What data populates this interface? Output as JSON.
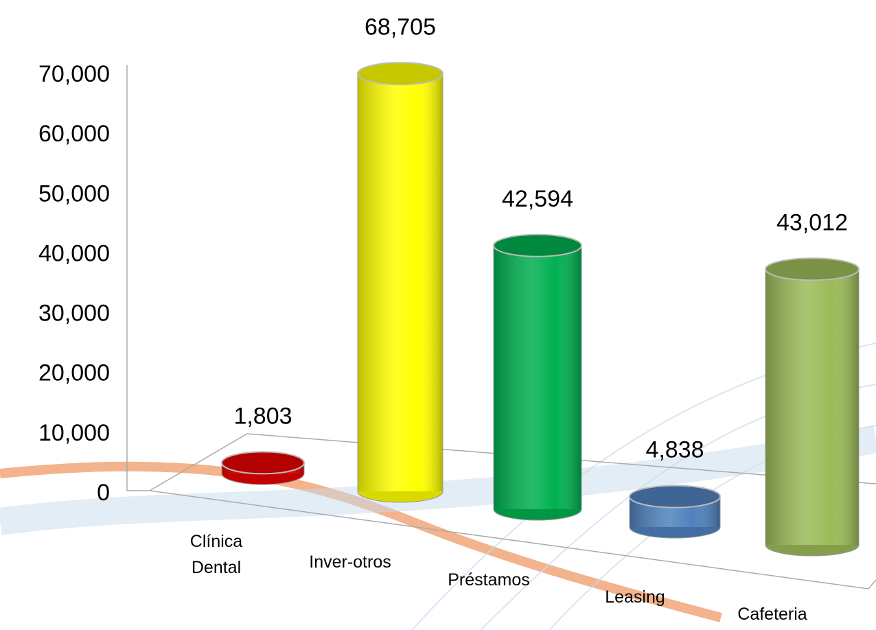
{
  "chart_data": {
    "type": "cylinder",
    "categories": [
      "Clínica Dental",
      "Inver-otros",
      "Préstamos",
      "Leasing",
      "Cafeteria"
    ],
    "values": [
      1803,
      68705,
      42594,
      4838,
      43012
    ],
    "value_labels": [
      "1,803",
      "68,705",
      "42,594",
      "4,838",
      "43,012"
    ],
    "colors": [
      "#e60000",
      "#ffff00",
      "#00b050",
      "#4f81bd",
      "#9bbb59"
    ],
    "ylim": [
      0,
      70000
    ],
    "yticks": [
      0,
      {
        "value": 10000,
        "label": "10,000"
      },
      {
        "value": 20000,
        "label": "20,000"
      },
      {
        "value": 30000,
        "label": "30,000"
      },
      {
        "value": 40000,
        "label": "40,000"
      },
      {
        "value": 50000,
        "label": "50,000"
      },
      {
        "value": 60000,
        "label": "60,000"
      },
      {
        "value": 70000,
        "label": "70,000"
      }
    ]
  }
}
